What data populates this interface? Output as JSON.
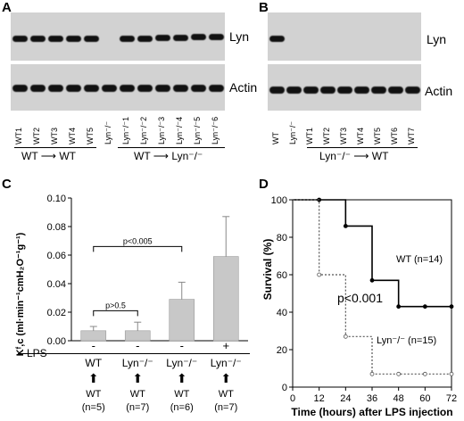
{
  "panels": {
    "A": {
      "letter": "A",
      "top_band": "Lyn",
      "bottom_band": "Actin",
      "lanes": [
        "WT1",
        "WT2",
        "WT3",
        "WT4",
        "WT5",
        "Lyn⁻/⁻",
        "Lyn⁻/⁻1",
        "Lyn⁻/⁻2",
        "Lyn⁻/⁻3",
        "Lyn⁻/⁻4",
        "Lyn⁻/⁻5",
        "Lyn⁻/⁻6"
      ],
      "group1": {
        "from": "WT",
        "to": "WT"
      },
      "group2": {
        "from": "WT",
        "to": "Lyn⁻/⁻"
      }
    },
    "B": {
      "letter": "B",
      "top_band": "Lyn",
      "bottom_band": "Actin",
      "lanes": [
        "WT",
        "Lyn⁻/⁻",
        "WT1",
        "WT2",
        "WT3",
        "WT4",
        "WT5",
        "WT6",
        "WT7"
      ],
      "group": {
        "from": "Lyn⁻/⁻",
        "to": "WT"
      }
    },
    "C": {
      "letter": "C",
      "lps_label": "LPS",
      "lps_signs": [
        "-",
        "-",
        "-",
        "+"
      ],
      "recipients": [
        "WT",
        "Lyn⁻/⁻",
        "Lyn⁻/⁻",
        "Lyn⁻/⁻"
      ],
      "donors": [
        "WT",
        "WT",
        "WT",
        "WT"
      ],
      "n": [
        "(n=5)",
        "(n=7)",
        "(n=6)",
        "(n=7)"
      ],
      "annotations": [
        "p<0.005",
        "p>0.5"
      ]
    },
    "D": {
      "letter": "D",
      "annotation": "p<0.001"
    }
  },
  "chart_data": [
    {
      "type": "bar",
      "panel": "C",
      "categories": [
        "WT / WT (n=5)",
        "Lyn⁻/⁻ / WT (n=7)",
        "Lyn⁻/⁻ / WT (n=6)",
        "Lyn⁻/⁻ / WT (n=7)"
      ],
      "values": [
        0.007,
        0.007,
        0.029,
        0.059
      ],
      "errors": [
        0.003,
        0.006,
        0.012,
        0.028
      ],
      "ylabel": "Kᶠ,c (ml·min⁻¹cmH₂O⁻¹g⁻¹)",
      "ylim": [
        0,
        0.1
      ],
      "yticks": [
        "0.00",
        "0.02",
        "0.04",
        "0.06",
        "0.08",
        "0.10"
      ],
      "grid": false,
      "color": "#c8c8c8"
    },
    {
      "type": "line",
      "panel": "D",
      "xlabel": "Time (hours) after LPS injection",
      "ylabel": "Survival (%)",
      "xlim": [
        0,
        72
      ],
      "ylim": [
        0,
        100
      ],
      "xticks": [
        0,
        12,
        24,
        36,
        48,
        60,
        72
      ],
      "yticks": [
        0,
        20,
        40,
        60,
        80,
        100
      ],
      "series": [
        {
          "name": "WT (n=14)",
          "x": [
            0,
            12,
            24,
            36,
            48,
            60,
            72
          ],
          "y": [
            100,
            100,
            86,
            57,
            43,
            43,
            43
          ],
          "color": "#000000",
          "dashed": false
        },
        {
          "name": "Lyn⁻/⁻ (n=15)",
          "x": [
            0,
            12,
            24,
            36,
            48,
            60,
            72
          ],
          "y": [
            100,
            60,
            27,
            7,
            7,
            7,
            7
          ],
          "color": "#555555",
          "dashed": true
        }
      ]
    }
  ]
}
